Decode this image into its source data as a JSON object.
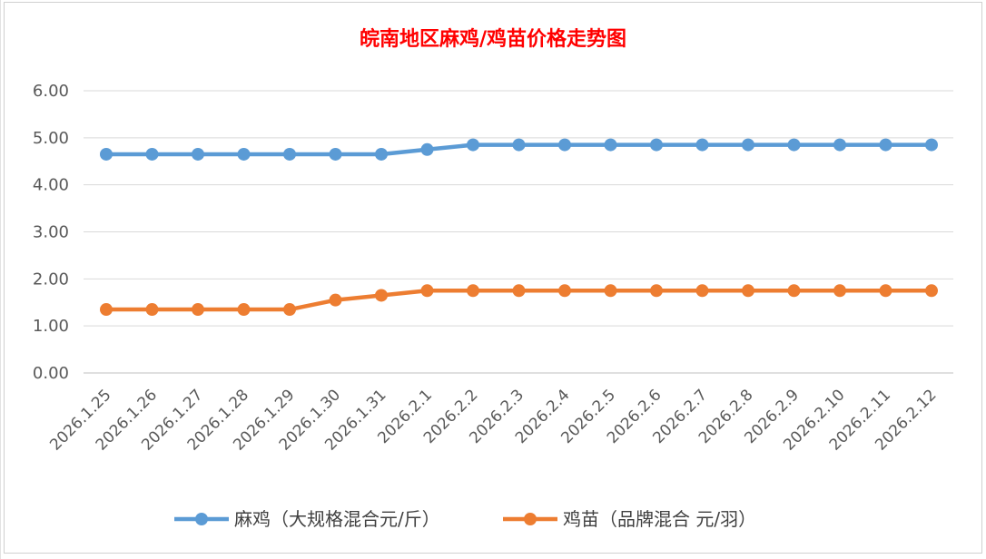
{
  "chart_data": {
    "type": "line",
    "title": "皖南地区麻鸡/鸡苗价格走势图",
    "xlabel": "",
    "ylabel": "",
    "categories": [
      "2026.1.25",
      "2026.1.26",
      "2026.1.27",
      "2026.1.28",
      "2026.1.29",
      "2026.1.30",
      "2026.1.31",
      "2026.2.1",
      "2026.2.2",
      "2026.2.3",
      "2026.2.4",
      "2026.2.5",
      "2026.2.6",
      "2026.2.7",
      "2026.2.8",
      "2026.2.9",
      "2026.2.10",
      "2026.2.11",
      "2026.2.12"
    ],
    "ylim": [
      0,
      6
    ],
    "yticks": [
      "0.00",
      "1.00",
      "2.00",
      "3.00",
      "4.00",
      "5.00",
      "6.00"
    ],
    "grid": "horizontal",
    "legend_position": "bottom",
    "series": [
      {
        "name": "麻鸡（大规格混合元/斤）",
        "color": "#5b9bd5",
        "values": [
          4.65,
          4.65,
          4.65,
          4.65,
          4.65,
          4.65,
          4.65,
          4.75,
          4.85,
          4.85,
          4.85,
          4.85,
          4.85,
          4.85,
          4.85,
          4.85,
          4.85,
          4.85,
          4.85
        ]
      },
      {
        "name": "鸡苗（品牌混合 元/羽）",
        "color": "#ed7d31",
        "values": [
          1.35,
          1.35,
          1.35,
          1.35,
          1.35,
          1.55,
          1.65,
          1.75,
          1.75,
          1.75,
          1.75,
          1.75,
          1.75,
          1.75,
          1.75,
          1.75,
          1.75,
          1.75,
          1.75
        ]
      }
    ]
  }
}
